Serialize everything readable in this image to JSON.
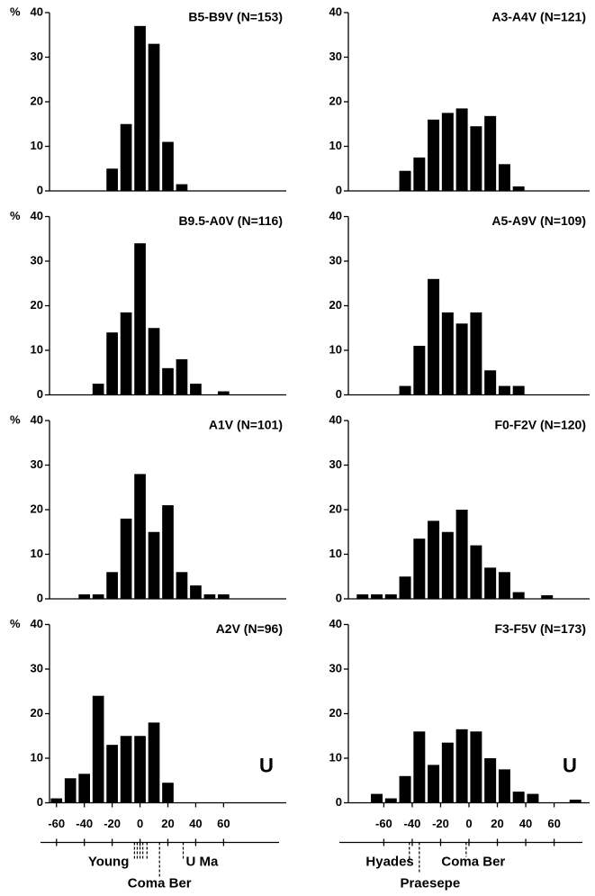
{
  "chart_data": [
    {
      "type": "histogram",
      "title": "B5-B9V (N=153)",
      "ylabel": "%",
      "color": "#000000",
      "bins": [
        -25,
        -15,
        -5,
        5,
        15,
        25,
        35
      ],
      "values": [
        5,
        15,
        37,
        33,
        11,
        1.5
      ],
      "xlim": [
        -65,
        105
      ],
      "ylim": [
        0,
        40
      ],
      "yticks": [
        0,
        10,
        20,
        30,
        40
      ]
    },
    {
      "type": "histogram",
      "title": "A3-A4V (N=121)",
      "color": "#000000",
      "bins": [
        -50,
        -40,
        -30,
        -20,
        -10,
        0,
        10,
        20,
        30,
        40
      ],
      "values": [
        4.5,
        7.5,
        16,
        17.5,
        18.5,
        14.5,
        16.8,
        6,
        1
      ],
      "xlim": [
        -85,
        85
      ],
      "ylim": [
        0,
        40
      ],
      "yticks": [
        0,
        10,
        20,
        30,
        40
      ]
    },
    {
      "type": "histogram",
      "title": "B9.5-A0V (N=116)",
      "ylabel": "%",
      "color": "#000000",
      "bins": [
        -35,
        -25,
        -15,
        -5,
        5,
        15,
        25,
        35,
        45,
        55,
        65
      ],
      "values": [
        2.5,
        14,
        18.5,
        34,
        15,
        6,
        8,
        2.5,
        0,
        0.8
      ],
      "xlim": [
        -65,
        105
      ],
      "ylim": [
        0,
        40
      ],
      "yticks": [
        0,
        10,
        20,
        30,
        40
      ]
    },
    {
      "type": "histogram",
      "title": "A5-A9V (N=109)",
      "color": "#000000",
      "bins": [
        -50,
        -40,
        -30,
        -20,
        -10,
        0,
        10,
        20,
        30,
        40
      ],
      "values": [
        2,
        11,
        26,
        18.5,
        16,
        18.5,
        5.5,
        2,
        2
      ],
      "xlim": [
        -85,
        85
      ],
      "ylim": [
        0,
        40
      ],
      "yticks": [
        0,
        10,
        20,
        30,
        40
      ]
    },
    {
      "type": "histogram",
      "title": "A1V (N=101)",
      "ylabel": "%",
      "color": "#000000",
      "bins": [
        -45,
        -35,
        -25,
        -15,
        -5,
        5,
        15,
        25,
        35,
        45,
        55,
        65
      ],
      "values": [
        1,
        1,
        6,
        18,
        28,
        15,
        21,
        6,
        3,
        1,
        1
      ],
      "xlim": [
        -65,
        105
      ],
      "ylim": [
        0,
        40
      ],
      "yticks": [
        0,
        10,
        20,
        30,
        40
      ]
    },
    {
      "type": "histogram",
      "title": "F0-F2V (N=120)",
      "color": "#000000",
      "bins": [
        -80,
        -70,
        -60,
        -50,
        -40,
        -30,
        -20,
        -10,
        0,
        10,
        20,
        30,
        40,
        50,
        60
      ],
      "values": [
        1,
        1,
        1,
        5,
        13.5,
        17.5,
        15,
        20,
        12,
        7,
        6,
        1.5,
        0,
        0.8
      ],
      "xlim": [
        -85,
        85
      ],
      "ylim": [
        0,
        40
      ],
      "yticks": [
        0,
        10,
        20,
        30,
        40
      ]
    },
    {
      "type": "histogram",
      "title": "A2V (N=96)",
      "ylabel": "%",
      "note": "U",
      "color": "#000000",
      "bins": [
        -65,
        -55,
        -45,
        -35,
        -25,
        -15,
        -5,
        5,
        15,
        25
      ],
      "values": [
        1,
        5.5,
        6.5,
        24,
        13,
        15,
        15,
        18,
        4.5
      ],
      "xlim": [
        -65,
        105
      ],
      "ylim": [
        0,
        40
      ],
      "yticks": [
        0,
        10,
        20,
        30,
        40
      ],
      "xticks": [
        -60,
        -40,
        -20,
        0,
        20,
        40,
        60
      ],
      "markers": [
        {
          "label": "Young",
          "x": [
            -4,
            -2,
            0,
            2,
            5
          ]
        },
        {
          "label": "Coma Ber",
          "x": [
            14
          ]
        },
        {
          "label": "U Ma",
          "x": [
            31
          ]
        }
      ]
    },
    {
      "type": "histogram",
      "title": "F3-F5V (N=173)",
      "note": "U",
      "color": "#000000",
      "bins": [
        -70,
        -60,
        -50,
        -40,
        -30,
        -20,
        -10,
        0,
        10,
        20,
        30,
        40,
        50,
        60,
        70,
        80
      ],
      "values": [
        2,
        1,
        6,
        16,
        8.5,
        13.5,
        16.5,
        16,
        10,
        7.5,
        2.5,
        2,
        0,
        0,
        0.7
      ],
      "xlim": [
        -85,
        85
      ],
      "ylim": [
        0,
        40
      ],
      "yticks": [
        0,
        10,
        20,
        30,
        40
      ],
      "xticks": [
        -60,
        -40,
        -20,
        0,
        20,
        40,
        60
      ],
      "markers": [
        {
          "label": "Hyades",
          "x": [
            -42
          ]
        },
        {
          "label": "Praesepe",
          "x": [
            -35
          ]
        },
        {
          "label": "Coma Ber",
          "x": [
            -2
          ]
        }
      ]
    }
  ]
}
